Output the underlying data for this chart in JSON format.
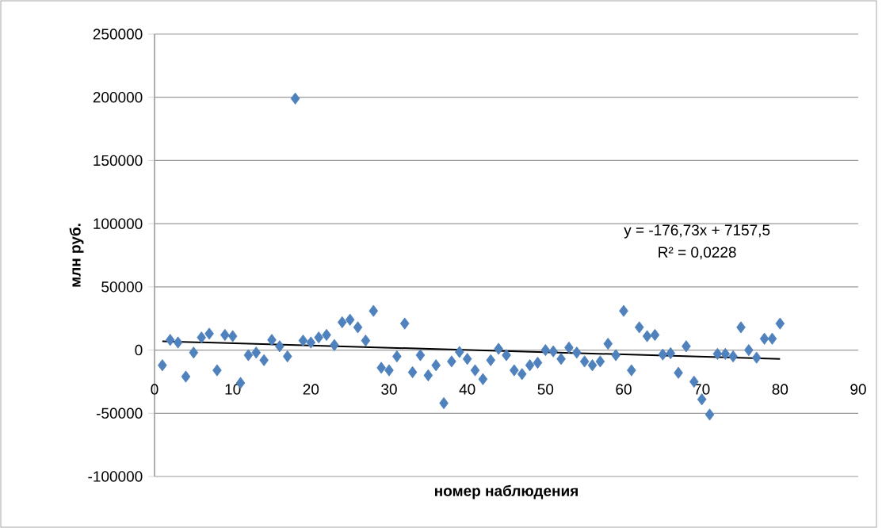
{
  "chart_data": {
    "type": "scatter",
    "xlabel": "номер наблюдения",
    "ylabel": "млн руб.",
    "annotations": [
      "y = -176,73x + 7157,5",
      "R² = 0,0228"
    ],
    "xlim": [
      0,
      90
    ],
    "xticks": [
      0,
      10,
      20,
      30,
      40,
      50,
      60,
      70,
      80,
      90
    ],
    "ylim": [
      -100000,
      250000
    ],
    "yticks": [
      -100000,
      -50000,
      0,
      50000,
      100000,
      150000,
      200000,
      250000
    ],
    "grid": "y",
    "series": [
      {
        "marker": "diamond",
        "color": "#4f81bd",
        "x": [
          1,
          2,
          3,
          4,
          5,
          6,
          7,
          8,
          9,
          10,
          11,
          12,
          13,
          14,
          15,
          16,
          17,
          18,
          19,
          20,
          21,
          22,
          23,
          24,
          25,
          26,
          27,
          28,
          29,
          30,
          31,
          32,
          33,
          34,
          35,
          36,
          37,
          38,
          39,
          40,
          41,
          42,
          43,
          44,
          45,
          46,
          47,
          48,
          49,
          50,
          51,
          52,
          53,
          54,
          55,
          56,
          57,
          58,
          59,
          60,
          61,
          62,
          63,
          64,
          65,
          66,
          67,
          68,
          69,
          70,
          71,
          72,
          73,
          74,
          75,
          76,
          77,
          78,
          79,
          80
        ],
        "values": [
          -12000,
          8000,
          6000,
          -21000,
          -2000,
          10000,
          13000,
          -16000,
          12000,
          11000,
          -26000,
          -4000,
          -2000,
          -8000,
          8000,
          3000,
          -5000,
          199000,
          7500,
          6000,
          10000,
          12000,
          4000,
          22000,
          24000,
          18000,
          7500,
          31000,
          -14000,
          -16000,
          -5000,
          21000,
          -17500,
          -4000,
          -20000,
          -12000,
          -42000,
          -9000,
          -1500,
          -7000,
          -16000,
          -23000,
          -8000,
          1000,
          -4000,
          -16000,
          -19000,
          -12000,
          -10000,
          0,
          -1000,
          -7000,
          2000,
          -2000,
          -9000,
          -12000,
          -9000,
          5000,
          -4000,
          31000,
          -16000,
          18000,
          11000,
          12000,
          -3500,
          -2500,
          -18000,
          3000,
          -25000,
          -39000,
          -51000,
          -3000,
          -3000,
          -5000,
          18000,
          0,
          -6000,
          9000,
          9000,
          21000
        ]
      },
      {
        "type": "line",
        "color": "#000000",
        "x": [
          1,
          80
        ],
        "values": [
          7000,
          -7000
        ]
      }
    ]
  }
}
